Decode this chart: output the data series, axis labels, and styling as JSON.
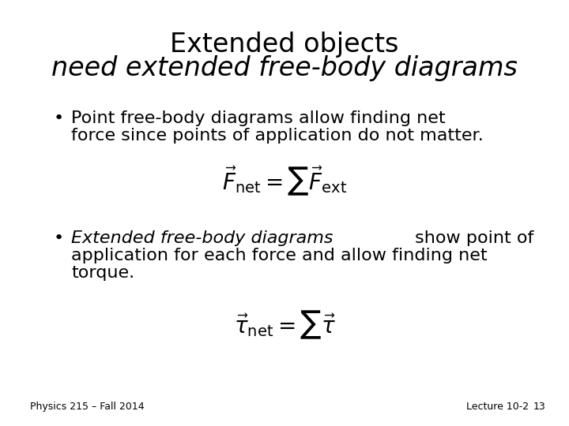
{
  "title_line1": "Extended objects",
  "title_line2": "need extended free-body diagrams",
  "bullet1_text1": "Point free-body diagrams allow finding net",
  "bullet1_text2": "force since points of application do not matter.",
  "bullet2_text1_italic": "Extended free-body diagrams",
  "bullet2_text1_normal": " show point of",
  "bullet2_text2": "application for each force and allow finding net",
  "bullet2_text3": "torque.",
  "formula1": "$\\vec{F}_{\\mathrm{net}} = \\sum \\vec{F}_{\\mathrm{ext}}$",
  "formula2": "$\\vec{\\tau}_{\\mathrm{net}} = \\sum \\vec{\\tau}$",
  "footer_left": "Physics 215 – Fall 2014",
  "footer_right_lecture": "Lecture 10-2",
  "footer_right_page": "13",
  "bg_color": "#ffffff",
  "text_color": "#000000",
  "title_fontsize": 24,
  "body_fontsize": 16,
  "formula_fontsize": 20,
  "footer_fontsize": 9
}
